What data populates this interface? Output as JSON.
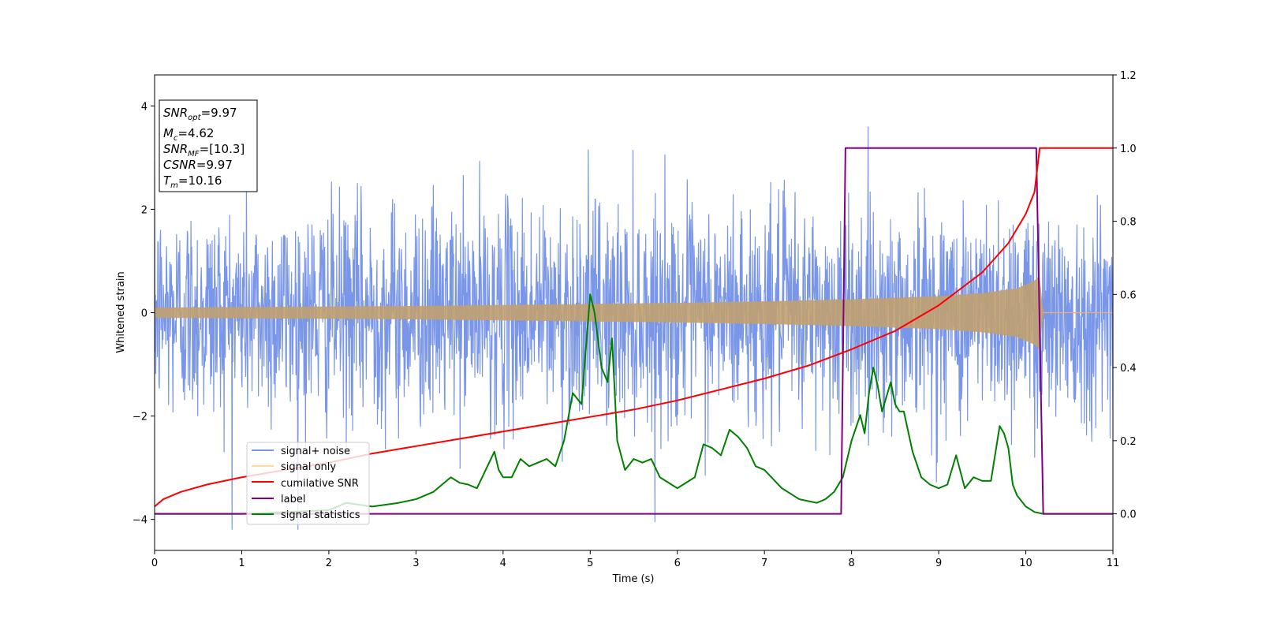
{
  "chart_data": {
    "type": "line",
    "title": "",
    "xlabel": "Time (s)",
    "ylabel": "Whitened strain",
    "y2label": "",
    "xlim": [
      0,
      11
    ],
    "ylim": [
      -4.6,
      4.6
    ],
    "y2lim": [
      -0.1,
      1.2
    ],
    "x_ticks": [
      "0",
      "1",
      "2",
      "3",
      "4",
      "5",
      "6",
      "7",
      "8",
      "9",
      "10",
      "11"
    ],
    "y_ticks": [
      "−4",
      "−2",
      "0",
      "2",
      "4"
    ],
    "y2_ticks": [
      "0.0",
      "0.2",
      "0.4",
      "0.6",
      "0.8",
      "1.0",
      "1.2"
    ],
    "grid": false,
    "legend_position": "lower-left",
    "info_box": {
      "snr_opt": {
        "sym": "SNR",
        "sub": "opt",
        "val": "=9.97"
      },
      "mc": {
        "sym": "M",
        "sub": "c",
        "val": "=4.62"
      },
      "snr_mf": {
        "sym": "SNR",
        "sub": "MF",
        "val": "=[10.3]"
      },
      "csnr": {
        "sym": "CSNR",
        "val": "=9.97"
      },
      "tm": {
        "sym": "T",
        "sub": "m",
        "val": "=10.16"
      }
    },
    "series": [
      {
        "name": "signal+ noise",
        "axis": "left",
        "color": "#7a96e8",
        "description": "whitened noise plus signal, roughly Gaussian with unit variance",
        "envelope_x": [
          0,
          11
        ],
        "envelope_y": [
          -3.9,
          4.2
        ]
      },
      {
        "name": "signal only",
        "axis": "left",
        "color": "#c0a070",
        "description": "chirp envelope growing until merger",
        "envelope_x": [
          0,
          1,
          2,
          3,
          4,
          5,
          6,
          7,
          8,
          9,
          9.5,
          9.9,
          10.1,
          10.16,
          10.2,
          11
        ],
        "envelope_y": [
          0.1,
          0.11,
          0.12,
          0.13,
          0.15,
          0.17,
          0.19,
          0.22,
          0.26,
          0.32,
          0.38,
          0.47,
          0.62,
          0.72,
          0.0,
          0.0
        ]
      },
      {
        "name": "cumilative SNR",
        "axis": "right",
        "color": "#ff0000",
        "x": [
          0,
          0.1,
          0.3,
          0.6,
          1,
          1.5,
          2,
          2.5,
          3,
          3.5,
          4,
          4.5,
          5,
          5.5,
          6,
          6.5,
          7,
          7.5,
          8,
          8.5,
          9,
          9.5,
          9.8,
          10,
          10.1,
          10.16,
          10.2,
          11
        ],
        "y": [
          0.02,
          0.04,
          0.06,
          0.08,
          0.1,
          0.12,
          0.14,
          0.165,
          0.185,
          0.205,
          0.225,
          0.245,
          0.265,
          0.285,
          0.31,
          0.34,
          0.37,
          0.405,
          0.45,
          0.5,
          0.57,
          0.66,
          0.74,
          0.82,
          0.88,
          1.0,
          1.0,
          1.0
        ]
      },
      {
        "name": "label",
        "axis": "right",
        "color": "#800080",
        "x": [
          0,
          7.88,
          7.93,
          10.12,
          10.2,
          11
        ],
        "y": [
          0.0,
          0.0,
          1.0,
          1.0,
          0.0,
          0.0
        ]
      },
      {
        "name": "signal statistics",
        "axis": "right",
        "color": "#008000",
        "x": [
          0,
          0.5,
          1,
          1.5,
          2,
          2.2,
          2.5,
          2.8,
          3,
          3.2,
          3.4,
          3.5,
          3.6,
          3.7,
          3.9,
          3.95,
          4,
          4.1,
          4.2,
          4.3,
          4.4,
          4.5,
          4.6,
          4.7,
          4.8,
          4.9,
          5,
          5.05,
          5.13,
          5.2,
          5.25,
          5.31,
          5.4,
          5.5,
          5.6,
          5.7,
          5.8,
          6,
          6.2,
          6.3,
          6.4,
          6.5,
          6.6,
          6.7,
          6.8,
          6.9,
          7,
          7.2,
          7.4,
          7.6,
          7.7,
          7.8,
          7.9,
          8,
          8.1,
          8.15,
          8.2,
          8.25,
          8.3,
          8.35,
          8.45,
          8.5,
          8.55,
          8.6,
          8.7,
          8.8,
          8.9,
          9,
          9.1,
          9.2,
          9.3,
          9.4,
          9.5,
          9.6,
          9.7,
          9.75,
          9.8,
          9.85,
          9.9,
          10,
          10.1,
          10.2,
          10.4,
          10.6,
          11
        ],
        "y": [
          0.0,
          0.0,
          0.0,
          0.005,
          0.01,
          0.03,
          0.02,
          0.03,
          0.04,
          0.06,
          0.1,
          0.085,
          0.08,
          0.07,
          0.17,
          0.12,
          0.1,
          0.1,
          0.15,
          0.13,
          0.14,
          0.15,
          0.13,
          0.2,
          0.33,
          0.3,
          0.6,
          0.55,
          0.4,
          0.36,
          0.48,
          0.2,
          0.12,
          0.15,
          0.14,
          0.15,
          0.1,
          0.07,
          0.1,
          0.19,
          0.18,
          0.16,
          0.23,
          0.21,
          0.18,
          0.13,
          0.12,
          0.07,
          0.04,
          0.03,
          0.04,
          0.06,
          0.1,
          0.2,
          0.27,
          0.22,
          0.33,
          0.4,
          0.35,
          0.28,
          0.36,
          0.3,
          0.28,
          0.28,
          0.17,
          0.1,
          0.08,
          0.07,
          0.08,
          0.16,
          0.07,
          0.1,
          0.09,
          0.09,
          0.24,
          0.22,
          0.18,
          0.08,
          0.05,
          0.02,
          0.005,
          0.0,
          0.0,
          0.0,
          0.0
        ]
      }
    ]
  }
}
